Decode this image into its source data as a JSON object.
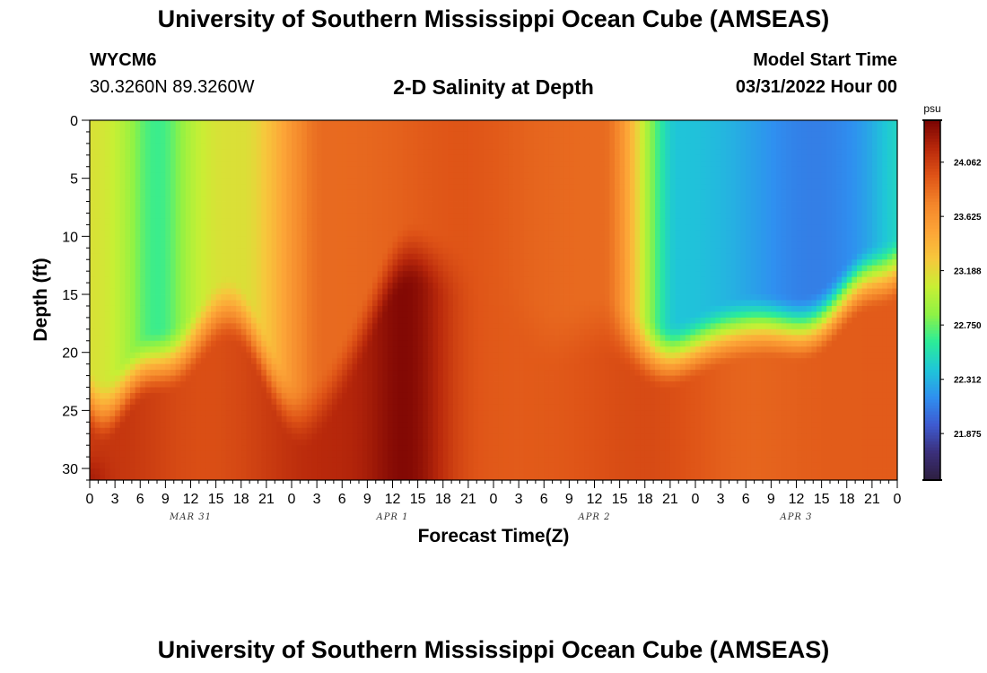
{
  "header": {
    "title": "University of Southern Mississippi Ocean Cube (AMSEAS)",
    "station_id": "WYCM6",
    "coordinates": "30.3260N  89.3260W",
    "plot_title": "2-D Salinity at Depth",
    "model_start_label": "Model Start Time",
    "model_start_value": "03/31/2022 Hour 00"
  },
  "footer": {
    "title": "University of Southern Mississippi Ocean Cube (AMSEAS)"
  },
  "chart_data": {
    "type": "heatmap",
    "title": "2-D Salinity at Depth",
    "xlabel": "Forecast Time(Z)",
    "ylabel": "Depth (ft)",
    "x_hours_range": [
      0,
      96
    ],
    "x_tick_step_hours": 3,
    "x_tick_labels": [
      "0",
      "3",
      "6",
      "9",
      "12",
      "15",
      "18",
      "21",
      "0",
      "3",
      "6",
      "9",
      "12",
      "15",
      "18",
      "21",
      "0",
      "3",
      "6",
      "9",
      "12",
      "15",
      "18",
      "21",
      "0",
      "3",
      "6",
      "9",
      "12",
      "15",
      "18",
      "21",
      "0"
    ],
    "day_labels": [
      {
        "label": "MAR 31",
        "hour": 12
      },
      {
        "label": "APR 1",
        "hour": 36
      },
      {
        "label": "APR 2",
        "hour": 60
      },
      {
        "label": "APR 3",
        "hour": 84
      }
    ],
    "y_range": [
      0,
      31
    ],
    "y_ticks": [
      0,
      5,
      10,
      15,
      20,
      25,
      30
    ],
    "colorbar": {
      "unit": "psu",
      "min": 21.5,
      "max": 24.4,
      "ticks": [
        24.062,
        23.625,
        23.188,
        22.75,
        22.312,
        21.875
      ],
      "tick_labels": [
        "24.062",
        "23.625",
        "23.188",
        "22.750",
        "22.312",
        "21.875"
      ],
      "colors": [
        "#2d1e3e",
        "#3b2f7a",
        "#3e5ad0",
        "#2f8ff0",
        "#1fc6d8",
        "#2bec99",
        "#8ef245",
        "#c8ef34",
        "#f7c73c",
        "#fca437",
        "#f3852a",
        "#df5417",
        "#b8280b",
        "#7a0403"
      ]
    },
    "surface_transitions": [
      {
        "hour": 0,
        "value": 23.15
      },
      {
        "hour": 5,
        "value": 22.65
      },
      {
        "hour": 15,
        "value": 23.2
      },
      {
        "hour": 25,
        "value": 23.7
      },
      {
        "hour": 36,
        "value": 23.85
      },
      {
        "hour": 56,
        "value": 23.75
      },
      {
        "hour": 62,
        "value": 23.3
      },
      {
        "hour": 72,
        "value": 22.2
      },
      {
        "hour": 90,
        "value": 22.0
      },
      {
        "hour": 96,
        "value": 22.1
      }
    ]
  }
}
